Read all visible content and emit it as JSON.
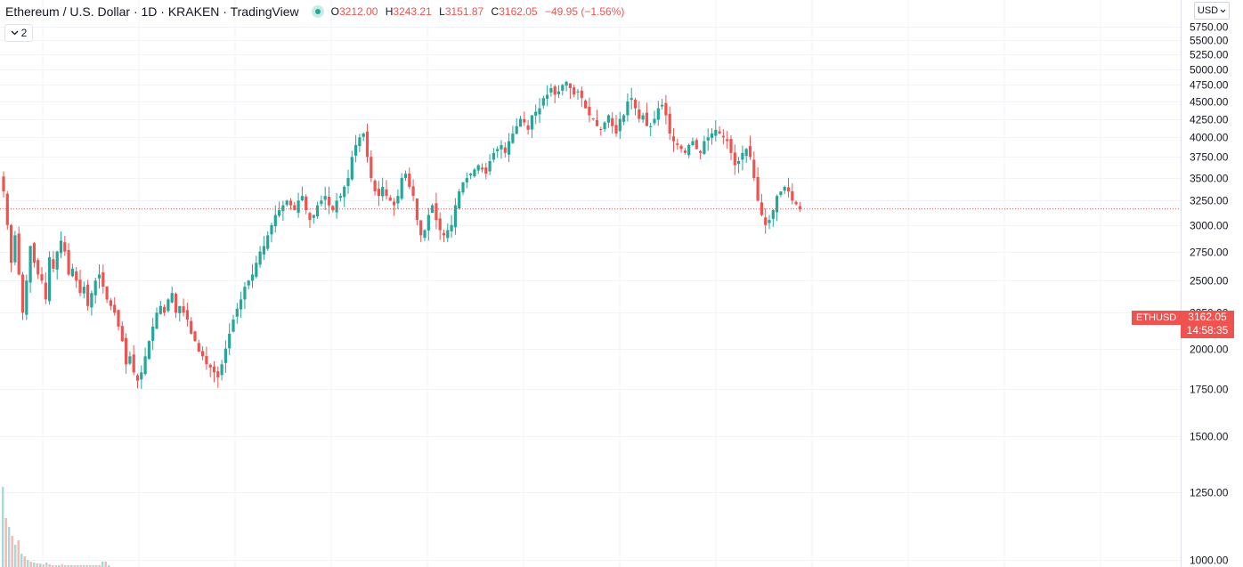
{
  "header": {
    "title": "Ethereum / U.S. Dollar · 1D · KRAKEN · TradingView",
    "ohlc": {
      "o_label": "O",
      "o_value": "3212.00",
      "h_label": "H",
      "h_value": "3243.21",
      "l_label": "L",
      "l_value": "3151.87",
      "c_label": "C",
      "c_value": "3162.05",
      "change": "−49.95 (−1.56%)"
    }
  },
  "indicator_toggle": {
    "label": "2",
    "icon": "chevron-down-icon"
  },
  "currency_button": {
    "label": "USD",
    "icon": "chevron-down-icon"
  },
  "price_label": {
    "symbol": "ETHUSD",
    "price": "3162.05",
    "countdown": "14:58:35"
  },
  "colors": {
    "up": "#26a69a",
    "down": "#ef5350",
    "grid": "#f0f3fa",
    "axis_text": "#131722",
    "volume_up": "#a8d9d4",
    "volume_down": "#f7b6b4"
  },
  "chart_data": {
    "type": "candlestick",
    "y_ticks": [
      "5750.00",
      "5500.00",
      "5250.00",
      "5000.00",
      "4750.00",
      "4500.00",
      "4250.00",
      "4000.00",
      "3750.00",
      "3500.00",
      "3250.00",
      "3000.00",
      "2750.00",
      "2500.00",
      "2250.00",
      "2000.00",
      "1750.00",
      "1500.00",
      "1250.00",
      "1000.00"
    ],
    "ylim": [
      1000,
      5750
    ],
    "y_scale": "log",
    "grid": true,
    "last_price": 3162.05,
    "closes": [
      3350,
      3000,
      2650,
      2900,
      2550,
      2250,
      2500,
      2800,
      2650,
      2550,
      2500,
      2350,
      2700,
      2600,
      2750,
      2850,
      2750,
      2550,
      2600,
      2500,
      2400,
      2450,
      2300,
      2400,
      2500,
      2550,
      2450,
      2350,
      2300,
      2250,
      2150,
      2050,
      1900,
      1950,
      1850,
      1800,
      1850,
      1950,
      2050,
      2150,
      2250,
      2300,
      2250,
      2350,
      2400,
      2250,
      2300,
      2250,
      2200,
      2100,
      2050,
      1980,
      1950,
      1900,
      1880,
      1850,
      1820,
      1900,
      2000,
      2100,
      2200,
      2280,
      2350,
      2450,
      2500,
      2550,
      2650,
      2750,
      2800,
      2900,
      3000,
      3100,
      3150,
      3200,
      3250,
      3200,
      3150,
      3250,
      3300,
      3150,
      3050,
      3100,
      3200,
      3250,
      3300,
      3200,
      3150,
      3250,
      3300,
      3400,
      3500,
      3750,
      3900,
      4000,
      4050,
      3750,
      3500,
      3350,
      3300,
      3400,
      3300,
      3250,
      3200,
      3300,
      3500,
      3550,
      3400,
      3300,
      3050,
      2900,
      2950,
      3100,
      3200,
      3050,
      2950,
      2900,
      2950,
      3000,
      3200,
      3350,
      3450,
      3500,
      3550,
      3600,
      3650,
      3600,
      3550,
      3700,
      3800,
      3850,
      3900,
      3800,
      3950,
      4050,
      4150,
      4250,
      4200,
      4100,
      4300,
      4350,
      4400,
      4550,
      4600,
      4700,
      4600,
      4650,
      4750,
      4800,
      4700,
      4600,
      4650,
      4550,
      4400,
      4300,
      4250,
      4150,
      4100,
      4200,
      4300,
      4150,
      4050,
      4250,
      4300,
      4500,
      4550,
      4400,
      4250,
      4300,
      4150,
      4150,
      4250,
      4400,
      4450,
      4300,
      4050,
      3950,
      3900,
      3850,
      3800,
      3900,
      3950,
      3850,
      3800,
      3950,
      4000,
      4050,
      4100,
      4050,
      4000,
      3950,
      3800,
      3650,
      3700,
      3800,
      3850,
      3750,
      3500,
      3250,
      3100,
      3000,
      3050,
      3150,
      3300,
      3350,
      3400,
      3350,
      3250,
      3212,
      3162.05
    ],
    "volume_bars": [
      0.9,
      0.55,
      0.45,
      0.35,
      0.25,
      0.3,
      0.15,
      0.12,
      0.08,
      0.06,
      0.05,
      0.04,
      0.04,
      0.03,
      0.05,
      0.03,
      0.02,
      0.02,
      0.02,
      0.03,
      0.02,
      0.02,
      0.02,
      0.02,
      0.02,
      0.02,
      0.02,
      0.02,
      0.02,
      0.02,
      0.02,
      0.02,
      0.06,
      0.06,
      0.02
    ]
  }
}
